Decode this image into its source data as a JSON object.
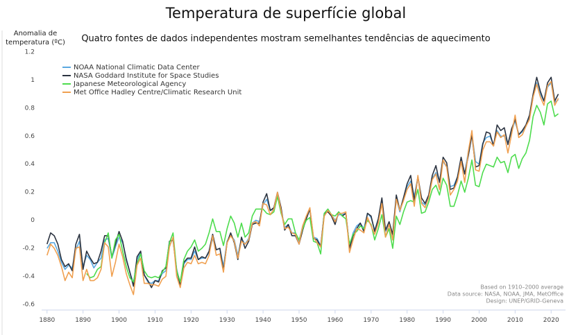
{
  "chart_data": {
    "type": "line",
    "title": "Temperatura de superfície global",
    "subtitle": "Quatro fontes de dados independentes mostram semelhantes tendências de aquecimento",
    "ylabel": "Anomalia de temperatura (ºC)",
    "annotations": [
      "Based on 1910–2000 average",
      "Data source: NASA, NOAA, JMA, MetOffice",
      "Design: UNEP/GRID-Geneva"
    ],
    "legend": "top-left",
    "grid": false,
    "xlim": [
      1878.5,
      2024
    ],
    "ylim": [
      -0.64,
      1.2
    ],
    "xticks": [
      1880,
      1890,
      1900,
      1910,
      1920,
      1930,
      1940,
      1950,
      1960,
      1970,
      1980,
      1990,
      2000,
      2010,
      2020
    ],
    "yticks": [
      -0.6,
      -0.4,
      -0.2,
      0,
      0.2,
      0.4,
      0.6,
      0.8,
      1,
      1.2
    ],
    "x": [
      1880,
      1881,
      1882,
      1883,
      1884,
      1885,
      1886,
      1887,
      1888,
      1889,
      1890,
      1891,
      1892,
      1893,
      1894,
      1895,
      1896,
      1897,
      1898,
      1899,
      1900,
      1901,
      1902,
      1903,
      1904,
      1905,
      1906,
      1907,
      1908,
      1909,
      1910,
      1911,
      1912,
      1913,
      1914,
      1915,
      1916,
      1917,
      1918,
      1919,
      1920,
      1921,
      1922,
      1923,
      1924,
      1925,
      1926,
      1927,
      1928,
      1929,
      1930,
      1931,
      1932,
      1933,
      1934,
      1935,
      1936,
      1937,
      1938,
      1939,
      1940,
      1941,
      1942,
      1943,
      1944,
      1945,
      1946,
      1947,
      1948,
      1949,
      1950,
      1951,
      1952,
      1953,
      1954,
      1955,
      1956,
      1957,
      1958,
      1959,
      1960,
      1961,
      1962,
      1963,
      1964,
      1965,
      1966,
      1967,
      1968,
      1969,
      1970,
      1971,
      1972,
      1973,
      1974,
      1975,
      1976,
      1977,
      1978,
      1979,
      1980,
      1981,
      1982,
      1983,
      1984,
      1985,
      1986,
      1987,
      1988,
      1989,
      1990,
      1991,
      1992,
      1993,
      1994,
      1995,
      1996,
      1997,
      1998,
      1999,
      2000,
      2001,
      2002,
      2003,
      2004,
      2005,
      2006,
      2007,
      2008,
      2009,
      2010,
      2011,
      2012,
      2013,
      2014,
      2015,
      2016,
      2017,
      2018,
      2019,
      2020,
      2021,
      2022
    ],
    "series": [
      {
        "name": "NOAA National Climatic Data Center",
        "color": "#5aa8e0",
        "values": [
          -0.2,
          -0.16,
          -0.16,
          -0.22,
          -0.3,
          -0.35,
          -0.32,
          -0.34,
          -0.21,
          -0.15,
          -0.33,
          -0.25,
          -0.28,
          -0.34,
          -0.3,
          -0.27,
          -0.14,
          -0.13,
          -0.27,
          -0.19,
          -0.12,
          -0.16,
          -0.27,
          -0.37,
          -0.45,
          -0.28,
          -0.23,
          -0.39,
          -0.44,
          -0.45,
          -0.43,
          -0.43,
          -0.38,
          -0.36,
          -0.18,
          -0.13,
          -0.35,
          -0.45,
          -0.31,
          -0.28,
          -0.28,
          -0.22,
          -0.28,
          -0.27,
          -0.27,
          -0.23,
          -0.13,
          -0.21,
          -0.2,
          -0.33,
          -0.15,
          -0.11,
          -0.14,
          -0.25,
          -0.13,
          -0.17,
          -0.13,
          -0.02,
          0.0,
          -0.01,
          0.11,
          0.15,
          0.07,
          0.08,
          0.18,
          0.06,
          -0.05,
          -0.03,
          -0.09,
          -0.09,
          -0.15,
          -0.04,
          0.02,
          0.08,
          -0.12,
          -0.13,
          -0.18,
          0.04,
          0.08,
          0.04,
          0.0,
          0.04,
          0.04,
          0.05,
          -0.19,
          -0.09,
          -0.04,
          -0.02,
          -0.06,
          0.05,
          0.02,
          -0.07,
          0.01,
          0.14,
          -0.08,
          -0.03,
          -0.11,
          0.15,
          0.06,
          0.16,
          0.24,
          0.28,
          0.17,
          0.31,
          0.13,
          0.11,
          0.17,
          0.3,
          0.34,
          0.28,
          0.42,
          0.38,
          0.24,
          0.25,
          0.31,
          0.43,
          0.33,
          0.49,
          0.62,
          0.42,
          0.4,
          0.55,
          0.59,
          0.6,
          0.54,
          0.64,
          0.6,
          0.6,
          0.55,
          0.63,
          0.71,
          0.61,
          0.63,
          0.67,
          0.73,
          0.88,
          0.98,
          0.9,
          0.85,
          0.95,
          0.98,
          0.84,
          0.86
        ]
      },
      {
        "name": "NASA Goddard Institute for Space Studies",
        "color": "#2b3340",
        "values": [
          -0.17,
          -0.09,
          -0.11,
          -0.17,
          -0.28,
          -0.33,
          -0.31,
          -0.36,
          -0.17,
          -0.1,
          -0.35,
          -0.22,
          -0.27,
          -0.31,
          -0.3,
          -0.22,
          -0.11,
          -0.11,
          -0.26,
          -0.17,
          -0.08,
          -0.15,
          -0.28,
          -0.37,
          -0.47,
          -0.26,
          -0.22,
          -0.39,
          -0.43,
          -0.48,
          -0.43,
          -0.44,
          -0.36,
          -0.34,
          -0.15,
          -0.14,
          -0.36,
          -0.46,
          -0.3,
          -0.27,
          -0.27,
          -0.19,
          -0.28,
          -0.26,
          -0.27,
          -0.22,
          -0.1,
          -0.21,
          -0.2,
          -0.36,
          -0.16,
          -0.09,
          -0.16,
          -0.28,
          -0.12,
          -0.2,
          -0.15,
          -0.03,
          -0.02,
          -0.02,
          0.13,
          0.19,
          0.07,
          0.09,
          0.2,
          0.09,
          -0.07,
          -0.03,
          -0.11,
          -0.11,
          -0.17,
          -0.07,
          0.01,
          0.08,
          -0.13,
          -0.14,
          -0.19,
          0.05,
          0.06,
          0.03,
          -0.03,
          0.06,
          0.03,
          0.05,
          -0.2,
          -0.11,
          -0.06,
          -0.02,
          -0.08,
          0.05,
          0.03,
          -0.08,
          0.01,
          0.16,
          -0.07,
          -0.01,
          -0.1,
          0.18,
          0.07,
          0.16,
          0.26,
          0.32,
          0.14,
          0.31,
          0.16,
          0.12,
          0.18,
          0.32,
          0.39,
          0.27,
          0.45,
          0.41,
          0.22,
          0.23,
          0.31,
          0.45,
          0.33,
          0.46,
          0.61,
          0.38,
          0.39,
          0.54,
          0.63,
          0.62,
          0.53,
          0.68,
          0.64,
          0.66,
          0.54,
          0.65,
          0.72,
          0.61,
          0.64,
          0.68,
          0.75,
          0.9,
          1.02,
          0.92,
          0.85,
          0.98,
          1.02,
          0.85,
          0.9
        ]
      },
      {
        "name": "Japanese Meteorological Agency",
        "color": "#4ddc4d",
        "values": [
          null,
          null,
          null,
          null,
          null,
          null,
          null,
          null,
          null,
          null,
          null,
          -0.38,
          -0.41,
          -0.4,
          -0.35,
          -0.33,
          -0.16,
          -0.09,
          -0.27,
          -0.14,
          -0.1,
          -0.22,
          -0.33,
          -0.41,
          -0.44,
          -0.31,
          -0.24,
          -0.36,
          -0.4,
          -0.41,
          -0.4,
          -0.41,
          -0.37,
          -0.33,
          -0.16,
          -0.09,
          -0.36,
          -0.44,
          -0.28,
          -0.22,
          -0.19,
          -0.14,
          -0.22,
          -0.2,
          -0.17,
          -0.09,
          0.01,
          -0.08,
          -0.08,
          -0.18,
          -0.06,
          0.03,
          -0.02,
          -0.12,
          -0.02,
          -0.12,
          -0.09,
          0.03,
          0.08,
          0.08,
          0.08,
          0.05,
          0.04,
          0.06,
          0.17,
          0.05,
          -0.03,
          0.01,
          0.01,
          -0.09,
          -0.14,
          -0.06,
          0.0,
          0.02,
          -0.15,
          -0.16,
          -0.24,
          0.05,
          0.08,
          0.04,
          0.03,
          0.06,
          0.03,
          0.01,
          -0.17,
          -0.1,
          -0.08,
          -0.04,
          -0.06,
          0.0,
          -0.03,
          -0.14,
          -0.06,
          0.04,
          -0.12,
          -0.06,
          -0.2,
          0.03,
          -0.03,
          0.06,
          0.13,
          0.14,
          0.13,
          0.22,
          0.05,
          0.06,
          0.13,
          0.22,
          0.25,
          0.18,
          0.3,
          0.25,
          0.1,
          0.1,
          0.18,
          0.28,
          0.2,
          0.3,
          0.43,
          0.25,
          0.24,
          0.34,
          0.4,
          0.39,
          0.38,
          0.45,
          0.41,
          0.42,
          0.34,
          0.45,
          0.47,
          0.37,
          0.44,
          0.48,
          0.57,
          0.74,
          0.82,
          0.77,
          0.68,
          0.83,
          0.85,
          0.74,
          0.76
        ]
      },
      {
        "name": "Met Office Hadley Centre/Climatic Research Unit",
        "color": "#f0a050",
        "values": [
          -0.25,
          -0.17,
          -0.2,
          -0.25,
          -0.33,
          -0.43,
          -0.37,
          -0.41,
          -0.2,
          -0.19,
          -0.43,
          -0.35,
          -0.43,
          -0.43,
          -0.41,
          -0.35,
          -0.16,
          -0.19,
          -0.4,
          -0.3,
          -0.17,
          -0.26,
          -0.38,
          -0.46,
          -0.53,
          -0.32,
          -0.27,
          -0.45,
          -0.45,
          -0.46,
          -0.46,
          -0.47,
          -0.42,
          -0.4,
          -0.19,
          -0.12,
          -0.4,
          -0.48,
          -0.34,
          -0.3,
          -0.31,
          -0.25,
          -0.31,
          -0.3,
          -0.31,
          -0.25,
          -0.11,
          -0.25,
          -0.24,
          -0.37,
          -0.16,
          -0.11,
          -0.15,
          -0.27,
          -0.15,
          -0.17,
          -0.14,
          -0.02,
          -0.01,
          -0.04,
          0.12,
          0.11,
          0.04,
          0.08,
          0.2,
          0.07,
          -0.06,
          -0.05,
          -0.09,
          -0.1,
          -0.17,
          -0.04,
          0.03,
          0.09,
          -0.12,
          -0.16,
          -0.19,
          0.03,
          0.07,
          0.04,
          -0.01,
          0.05,
          0.05,
          0.06,
          -0.23,
          -0.14,
          -0.06,
          -0.07,
          -0.09,
          0.02,
          -0.04,
          -0.1,
          -0.02,
          0.12,
          -0.12,
          -0.03,
          -0.14,
          0.15,
          0.07,
          0.14,
          0.22,
          0.26,
          0.1,
          0.32,
          0.12,
          0.09,
          0.16,
          0.29,
          0.33,
          0.22,
          0.43,
          0.38,
          0.18,
          0.22,
          0.28,
          0.42,
          0.27,
          0.49,
          0.64,
          0.36,
          0.35,
          0.5,
          0.56,
          0.56,
          0.53,
          0.63,
          0.59,
          0.61,
          0.48,
          0.61,
          0.75,
          0.59,
          0.61,
          0.67,
          0.72,
          0.88,
          0.97,
          0.88,
          0.82,
          0.96,
          0.99,
          0.82,
          0.87
        ]
      }
    ]
  }
}
